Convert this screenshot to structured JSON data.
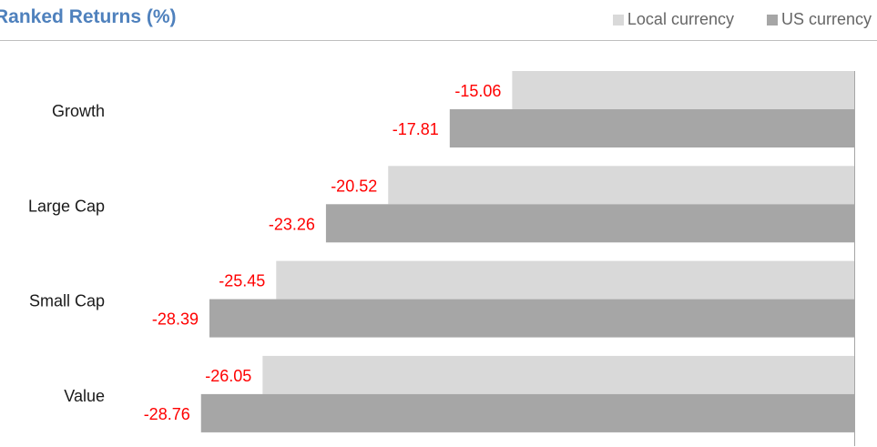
{
  "chart_data": {
    "type": "bar",
    "orientation": "horizontal",
    "title": "Ranked Returns (%)",
    "categories": [
      "Growth",
      "Large Cap",
      "Small Cap",
      "Value"
    ],
    "series": [
      {
        "name": "Local currency",
        "values": [
          -15.06,
          -20.52,
          -25.45,
          -26.05
        ],
        "color": "#d9d9d9"
      },
      {
        "name": "US currency",
        "values": [
          -17.81,
          -23.26,
          -28.39,
          -28.76
        ],
        "color": "#a6a6a6"
      }
    ],
    "xlim": [
      -33,
      0
    ],
    "label_color": "#ff0000",
    "legend_position": "top-right",
    "grid": false
  }
}
